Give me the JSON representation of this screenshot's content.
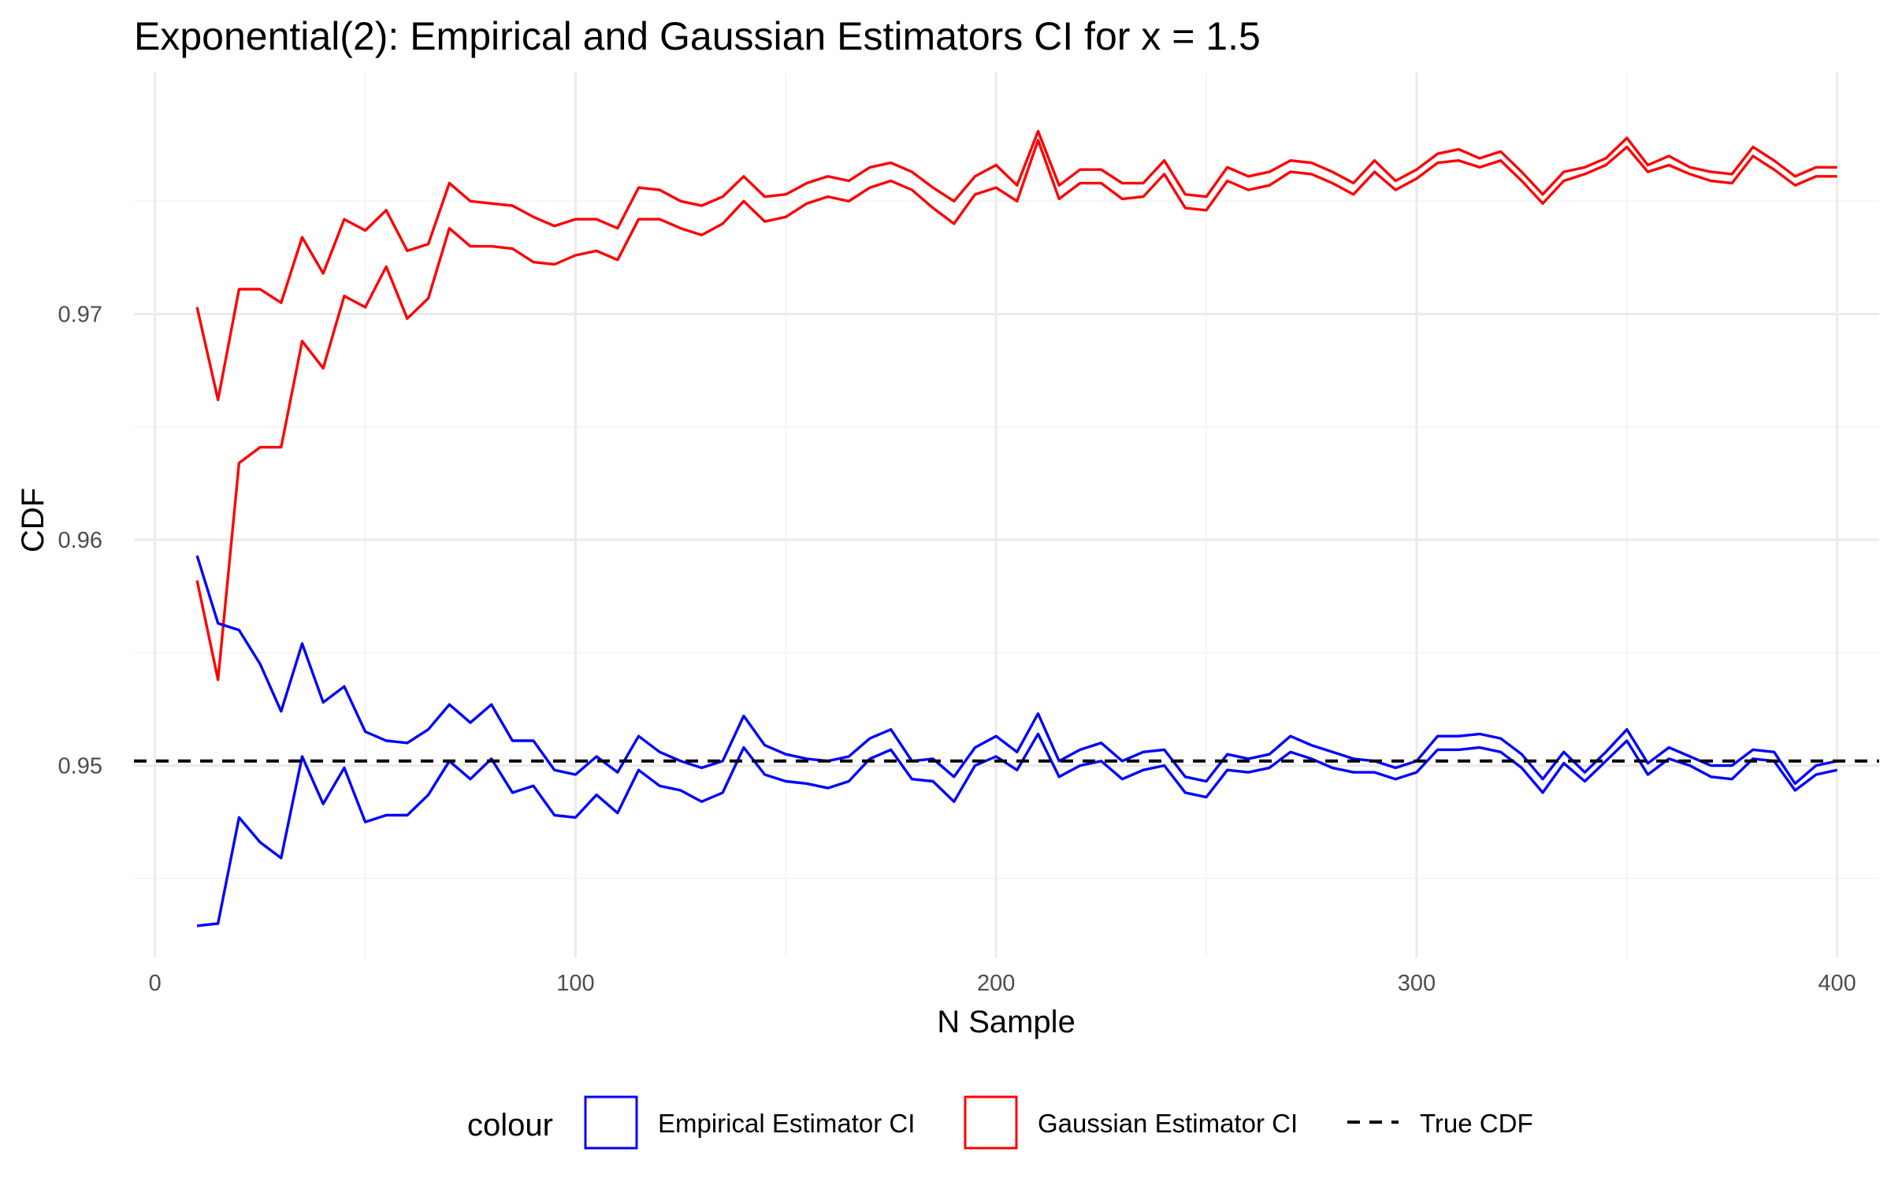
{
  "chart_data": {
    "type": "line",
    "title": "Exponential(2): Empirical and Gaussian Estimators CI for x = 1.5",
    "xlabel": "N Sample",
    "ylabel": "CDF",
    "xlim": [
      -5,
      410
    ],
    "ylim": [
      0.9415,
      0.9807
    ],
    "x_ticks": [
      0,
      100,
      200,
      300,
      400
    ],
    "y_ticks": [
      0.95,
      0.96,
      0.97
    ],
    "grid": true,
    "legend": {
      "position": "bottom",
      "title": "colour",
      "entries": [
        {
          "label": "Empirical Estimator CI",
          "color": "#0000ff",
          "style": "box"
        },
        {
          "label": "Gaussian Estimator CI",
          "color": "#ff0000",
          "style": "box"
        },
        {
          "label": "True CDF",
          "color": "#000000",
          "style": "dashed"
        }
      ]
    },
    "x": [
      10,
      15,
      20,
      25,
      30,
      35,
      40,
      45,
      50,
      55,
      60,
      65,
      70,
      75,
      80,
      85,
      90,
      95,
      100,
      105,
      110,
      115,
      120,
      125,
      130,
      135,
      140,
      145,
      150,
      155,
      160,
      165,
      170,
      175,
      180,
      185,
      190,
      195,
      200,
      205,
      210,
      215,
      220,
      225,
      230,
      235,
      240,
      245,
      250,
      255,
      260,
      265,
      270,
      275,
      280,
      285,
      290,
      295,
      300,
      305,
      310,
      315,
      320,
      325,
      330,
      335,
      340,
      345,
      350,
      355,
      360,
      365,
      370,
      375,
      380,
      385,
      390,
      395,
      400
    ],
    "series": [
      {
        "name": "Gaussian Estimator CI",
        "bound": "upper",
        "color": "#ff0000",
        "values": [
          0.9703,
          0.9662,
          0.9711,
          0.9711,
          0.9705,
          0.9734,
          0.9718,
          0.9742,
          0.9737,
          0.9746,
          0.9728,
          0.9731,
          0.9758,
          0.975,
          0.9749,
          0.9748,
          0.9743,
          0.9739,
          0.9742,
          0.9742,
          0.9738,
          0.9756,
          0.9755,
          0.975,
          0.9748,
          0.9752,
          0.9761,
          0.9752,
          0.9753,
          0.9758,
          0.9761,
          0.9759,
          0.9765,
          0.9767,
          0.9763,
          0.9756,
          0.975,
          0.9761,
          0.9766,
          0.9757,
          0.9781,
          0.9757,
          0.9764,
          0.9764,
          0.9758,
          0.9758,
          0.9768,
          0.9753,
          0.9752,
          0.9765,
          0.9761,
          0.9763,
          0.9768,
          0.9767,
          0.9763,
          0.9758,
          0.9768,
          0.9759,
          0.9764,
          0.9771,
          0.9773,
          0.9769,
          0.9772,
          0.9763,
          0.9753,
          0.9763,
          0.9765,
          0.9769,
          0.9778,
          0.9766,
          0.977,
          0.9765,
          0.9763,
          0.9762,
          0.9774,
          0.9768,
          0.9761,
          0.9765,
          0.9765
        ]
      },
      {
        "name": "Gaussian Estimator CI",
        "bound": "lower",
        "color": "#ff0000",
        "values": [
          0.9582,
          0.9538,
          0.9634,
          0.9641,
          0.9641,
          0.9688,
          0.9676,
          0.9708,
          0.9703,
          0.9721,
          0.9698,
          0.9707,
          0.9738,
          0.973,
          0.973,
          0.9729,
          0.9723,
          0.9722,
          0.9726,
          0.9728,
          0.9724,
          0.9742,
          0.9742,
          0.9738,
          0.9735,
          0.974,
          0.975,
          0.9741,
          0.9743,
          0.9749,
          0.9752,
          0.975,
          0.9756,
          0.9759,
          0.9755,
          0.9747,
          0.974,
          0.9753,
          0.9756,
          0.975,
          0.9777,
          0.9751,
          0.9758,
          0.9758,
          0.9751,
          0.9752,
          0.9762,
          0.9747,
          0.9746,
          0.9759,
          0.9755,
          0.9757,
          0.9763,
          0.9762,
          0.9758,
          0.9753,
          0.9763,
          0.9755,
          0.976,
          0.9767,
          0.9768,
          0.9765,
          0.9768,
          0.9759,
          0.9749,
          0.9759,
          0.9762,
          0.9766,
          0.9774,
          0.9763,
          0.9766,
          0.9762,
          0.9759,
          0.9758,
          0.977,
          0.9764,
          0.9757,
          0.9761,
          0.9761
        ]
      },
      {
        "name": "Empirical Estimator CI",
        "bound": "upper",
        "color": "#0000ff",
        "values": [
          0.9593,
          0.9563,
          0.956,
          0.9545,
          0.9524,
          0.9554,
          0.9528,
          0.9535,
          0.9515,
          0.9511,
          0.951,
          0.9516,
          0.9527,
          0.9519,
          0.9527,
          0.9511,
          0.9511,
          0.9498,
          0.9496,
          0.9504,
          0.9497,
          0.9513,
          0.9506,
          0.9502,
          0.9499,
          0.9502,
          0.9522,
          0.9509,
          0.9505,
          0.9503,
          0.9502,
          0.9504,
          0.9512,
          0.9516,
          0.9502,
          0.9503,
          0.9495,
          0.9508,
          0.9513,
          0.9506,
          0.9523,
          0.9502,
          0.9507,
          0.951,
          0.9502,
          0.9506,
          0.9507,
          0.9495,
          0.9493,
          0.9505,
          0.9503,
          0.9505,
          0.9513,
          0.9509,
          0.9506,
          0.9503,
          0.9502,
          0.9499,
          0.9502,
          0.9513,
          0.9513,
          0.9514,
          0.9512,
          0.9505,
          0.9494,
          0.9506,
          0.9497,
          0.9506,
          0.9516,
          0.9501,
          0.9508,
          0.9504,
          0.95,
          0.95,
          0.9507,
          0.9506,
          0.9492,
          0.95,
          0.9502
        ]
      },
      {
        "name": "Empirical Estimator CI",
        "bound": "lower",
        "color": "#0000ff",
        "values": [
          0.9429,
          0.943,
          0.9477,
          0.9466,
          0.9459,
          0.9504,
          0.9483,
          0.9499,
          0.9475,
          0.9478,
          0.9478,
          0.9487,
          0.9502,
          0.9494,
          0.9503,
          0.9488,
          0.9491,
          0.9478,
          0.9477,
          0.9487,
          0.9479,
          0.9498,
          0.9491,
          0.9489,
          0.9484,
          0.9488,
          0.9508,
          0.9496,
          0.9493,
          0.9492,
          0.949,
          0.9493,
          0.9503,
          0.9507,
          0.9494,
          0.9493,
          0.9484,
          0.95,
          0.9504,
          0.9498,
          0.9514,
          0.9495,
          0.95,
          0.9502,
          0.9494,
          0.9498,
          0.95,
          0.9488,
          0.9486,
          0.9498,
          0.9497,
          0.9499,
          0.9506,
          0.9503,
          0.9499,
          0.9497,
          0.9497,
          0.9494,
          0.9497,
          0.9507,
          0.9507,
          0.9508,
          0.9506,
          0.9499,
          0.9488,
          0.9501,
          0.9493,
          0.9502,
          0.9511,
          0.9496,
          0.9503,
          0.95,
          0.9495,
          0.9494,
          0.9503,
          0.9502,
          0.9489,
          0.9496,
          0.9498
        ]
      },
      {
        "name": "True CDF",
        "color": "#000000",
        "dashed": true,
        "constant": 0.9502
      }
    ]
  }
}
